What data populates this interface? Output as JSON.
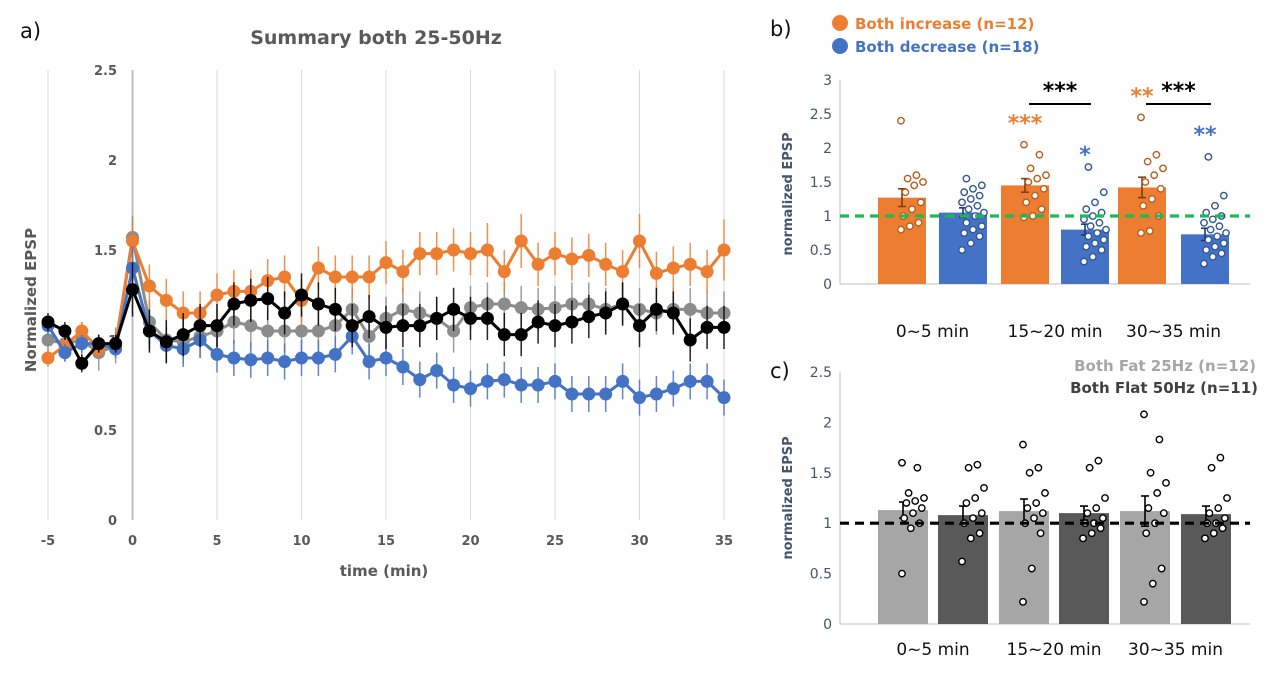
{
  "panel_labels": {
    "a": "a)",
    "b": "b)",
    "c": "c)"
  },
  "colors": {
    "orange": "#ed7d31",
    "blue": "#4472c4",
    "gray": "#8c8c8c",
    "black": "#000000",
    "light_bar": "#a6a6a6",
    "dark_bar": "#595959",
    "green_ref": "#1db954"
  },
  "chart_data": [
    {
      "type": "line",
      "title": "Summary both 25-50Hz",
      "xlabel": "time (min)",
      "ylabel": "Normalized EPSP",
      "xlim": [
        -5,
        35
      ],
      "ylim": [
        0,
        2.5
      ],
      "x_ticks": [
        "-5",
        "0",
        "5",
        "10",
        "15",
        "20",
        "25",
        "30",
        "35"
      ],
      "y_ticks": [
        "0",
        "0.5",
        "1",
        "1.5",
        "2",
        "2.5"
      ],
      "grid": true,
      "x": [
        -5,
        -4,
        -3,
        -2,
        -1,
        0,
        1,
        2,
        3,
        4,
        5,
        6,
        7,
        8,
        9,
        10,
        11,
        12,
        13,
        14,
        15,
        16,
        17,
        18,
        19,
        20,
        21,
        22,
        23,
        24,
        25,
        26,
        27,
        28,
        29,
        30,
        31,
        32,
        33,
        34,
        35
      ],
      "series": [
        {
          "color": "#8c8c8c",
          "values": [
            1.0,
            0.98,
            1.0,
            0.93,
            0.97,
            1.57,
            1.1,
            1.0,
            0.99,
            1.02,
            1.05,
            1.1,
            1.08,
            1.05,
            1.05,
            1.05,
            1.05,
            1.08,
            1.17,
            1.02,
            1.12,
            1.17,
            1.15,
            1.12,
            1.05,
            1.18,
            1.2,
            1.2,
            1.18,
            1.17,
            1.18,
            1.2,
            1.2,
            1.17,
            1.2,
            1.17,
            1.15,
            1.17,
            1.17,
            1.15,
            1.15
          ],
          "errors": [
            0.1,
            0.1,
            0.1,
            0.1,
            0.1,
            0.12,
            0.12,
            0.12,
            0.12,
            0.12,
            0.12,
            0.12,
            0.12,
            0.12,
            0.12,
            0.12,
            0.12,
            0.12,
            0.12,
            0.12,
            0.12,
            0.12,
            0.12,
            0.12,
            0.12,
            0.12,
            0.12,
            0.12,
            0.12,
            0.12,
            0.12,
            0.12,
            0.12,
            0.12,
            0.12,
            0.12,
            0.12,
            0.12,
            0.12,
            0.12,
            0.12
          ]
        },
        {
          "color": "#ed7d31",
          "values": [
            0.9,
            0.97,
            1.05,
            0.95,
            0.98,
            1.55,
            1.3,
            1.22,
            1.15,
            1.15,
            1.25,
            1.27,
            1.27,
            1.33,
            1.35,
            1.22,
            1.4,
            1.35,
            1.35,
            1.35,
            1.43,
            1.38,
            1.48,
            1.48,
            1.5,
            1.48,
            1.5,
            1.38,
            1.55,
            1.42,
            1.48,
            1.45,
            1.47,
            1.42,
            1.38,
            1.55,
            1.37,
            1.4,
            1.42,
            1.38,
            1.5
          ],
          "errors": [
            0.05,
            0.05,
            0.05,
            0.05,
            0.05,
            0.12,
            0.12,
            0.12,
            0.12,
            0.12,
            0.12,
            0.12,
            0.12,
            0.12,
            0.12,
            0.12,
            0.12,
            0.12,
            0.12,
            0.12,
            0.12,
            0.12,
            0.12,
            0.12,
            0.12,
            0.12,
            0.15,
            0.12,
            0.15,
            0.12,
            0.12,
            0.12,
            0.12,
            0.12,
            0.12,
            0.15,
            0.12,
            0.12,
            0.12,
            0.12,
            0.17
          ]
        },
        {
          "color": "#4472c4",
          "values": [
            1.08,
            0.93,
            0.98,
            0.98,
            0.95,
            1.4,
            1.05,
            0.97,
            0.95,
            1.0,
            0.92,
            0.9,
            0.89,
            0.9,
            0.88,
            0.9,
            0.9,
            0.92,
            1.02,
            0.88,
            0.9,
            0.85,
            0.78,
            0.83,
            0.75,
            0.73,
            0.77,
            0.78,
            0.75,
            0.75,
            0.77,
            0.7,
            0.7,
            0.7,
            0.77,
            0.68,
            0.7,
            0.73,
            0.77,
            0.77,
            0.68
          ],
          "errors": [
            0.05,
            0.05,
            0.05,
            0.05,
            0.05,
            0.12,
            0.1,
            0.1,
            0.1,
            0.1,
            0.1,
            0.1,
            0.1,
            0.1,
            0.1,
            0.1,
            0.1,
            0.1,
            0.1,
            0.1,
            0.1,
            0.1,
            0.1,
            0.1,
            0.1,
            0.1,
            0.1,
            0.1,
            0.1,
            0.1,
            0.1,
            0.1,
            0.1,
            0.1,
            0.1,
            0.1,
            0.1,
            0.1,
            0.1,
            0.1,
            0.1
          ]
        },
        {
          "color": "#000000",
          "values": [
            1.1,
            1.05,
            0.87,
            0.98,
            0.98,
            1.28,
            1.05,
            0.99,
            1.03,
            1.08,
            1.08,
            1.2,
            1.22,
            1.23,
            1.15,
            1.25,
            1.2,
            1.17,
            1.08,
            1.13,
            1.07,
            1.08,
            1.08,
            1.12,
            1.17,
            1.12,
            1.12,
            1.03,
            1.03,
            1.1,
            1.08,
            1.1,
            1.13,
            1.15,
            1.2,
            1.08,
            1.17,
            1.15,
            1.0,
            1.07,
            1.07
          ],
          "errors": [
            0.05,
            0.05,
            0.05,
            0.05,
            0.05,
            0.15,
            0.12,
            0.12,
            0.12,
            0.12,
            0.12,
            0.12,
            0.12,
            0.12,
            0.12,
            0.12,
            0.12,
            0.12,
            0.12,
            0.12,
            0.12,
            0.12,
            0.12,
            0.12,
            0.12,
            0.12,
            0.12,
            0.12,
            0.12,
            0.12,
            0.12,
            0.12,
            0.12,
            0.12,
            0.12,
            0.12,
            0.12,
            0.12,
            0.12,
            0.12,
            0.12
          ]
        }
      ]
    },
    {
      "type": "bar",
      "title": "",
      "xlabel": "",
      "ylabel": "normalized EPSP",
      "ylim": [
        0,
        3
      ],
      "y_ticks": [
        "0",
        "0.5",
        "1",
        "1.5",
        "2",
        "2.5",
        "3"
      ],
      "categories": [
        "0~5 min",
        "15~20 min",
        "30~35 min"
      ],
      "reference_line": 1.0,
      "legend": [
        {
          "label": "Both increase (n=12)",
          "color": "#ed7d31"
        },
        {
          "label": "Both decrease (n=18)",
          "color": "#4472c4"
        }
      ],
      "series": [
        {
          "name": "Both increase (n=12)",
          "color": "#ed7d31",
          "values": [
            1.27,
            1.45,
            1.42
          ],
          "errors": [
            0.13,
            0.1,
            0.15
          ],
          "significance": [
            "",
            "***",
            "**"
          ],
          "points": [
            [
              0.8,
              0.85,
              0.9,
              1.0,
              1.1,
              1.2,
              1.35,
              1.45,
              1.5,
              1.55,
              1.6,
              2.4
            ],
            [
              0.98,
              1.0,
              1.1,
              1.2,
              1.3,
              1.4,
              1.5,
              1.55,
              1.6,
              1.7,
              1.9,
              2.05
            ],
            [
              0.75,
              0.78,
              1.0,
              1.15,
              1.25,
              1.4,
              1.5,
              1.6,
              1.7,
              1.8,
              1.9,
              2.45
            ]
          ]
        },
        {
          "name": "Both decrease (n=18)",
          "color": "#4472c4",
          "values": [
            1.05,
            0.8,
            0.73
          ],
          "errors": [
            0.07,
            0.08,
            0.09
          ],
          "significance": [
            "",
            "*",
            "**"
          ],
          "points": [
            [
              0.5,
              0.6,
              0.7,
              0.75,
              0.8,
              0.85,
              0.9,
              1.0,
              1.05,
              1.1,
              1.15,
              1.2,
              1.25,
              1.3,
              1.35,
              1.4,
              1.45,
              1.55
            ],
            [
              0.33,
              0.4,
              0.5,
              0.55,
              0.6,
              0.65,
              0.7,
              0.75,
              0.8,
              0.85,
              0.9,
              0.95,
              1.0,
              1.05,
              1.1,
              1.2,
              1.35,
              1.72
            ],
            [
              0.3,
              0.4,
              0.45,
              0.5,
              0.55,
              0.6,
              0.65,
              0.7,
              0.75,
              0.8,
              0.85,
              0.9,
              0.95,
              1.0,
              1.05,
              1.15,
              1.3,
              1.87
            ]
          ]
        }
      ],
      "comparisons": [
        {
          "category": "15~20 min",
          "label": "***"
        },
        {
          "category": "30~35 min",
          "label": "***"
        }
      ]
    },
    {
      "type": "bar",
      "title": "",
      "xlabel": "",
      "ylabel": "normalized EPSP",
      "ylim": [
        0,
        2.5
      ],
      "y_ticks": [
        "0",
        "0.5",
        "1",
        "1.5",
        "2",
        "2.5"
      ],
      "categories": [
        "0~5 min",
        "15~20 min",
        "30~35 min"
      ],
      "reference_line": 1.0,
      "legend": [
        {
          "label": "Both Fat 25Hz (n=12)",
          "color": "#a6a6a6"
        },
        {
          "label": "Both Flat 50Hz (n=11)",
          "color": "#404040"
        }
      ],
      "series": [
        {
          "name": "Both Fat 25Hz (n=12)",
          "color": "#a6a6a6",
          "values": [
            1.13,
            1.12,
            1.12
          ],
          "errors": [
            0.08,
            0.12,
            0.15
          ],
          "points": [
            [
              0.5,
              0.95,
              1.0,
              1.05,
              1.1,
              1.15,
              1.2,
              1.22,
              1.25,
              1.3,
              1.55,
              1.6
            ],
            [
              0.22,
              0.55,
              0.9,
              1.0,
              1.05,
              1.1,
              1.15,
              1.2,
              1.3,
              1.5,
              1.55,
              1.78
            ],
            [
              0.22,
              0.4,
              0.55,
              0.9,
              1.0,
              1.1,
              1.15,
              1.3,
              1.4,
              1.5,
              1.83,
              2.08
            ]
          ]
        },
        {
          "name": "Both Flat 50Hz (n=11)",
          "color": "#595959",
          "values": [
            1.08,
            1.1,
            1.09
          ],
          "errors": [
            0.09,
            0.07,
            0.08
          ],
          "points": [
            [
              0.62,
              0.85,
              0.9,
              1.0,
              1.05,
              1.1,
              1.2,
              1.25,
              1.35,
              1.55,
              1.58
            ],
            [
              0.85,
              0.9,
              0.95,
              1.0,
              1.0,
              1.05,
              1.1,
              1.15,
              1.25,
              1.55,
              1.62
            ],
            [
              0.85,
              0.9,
              0.95,
              1.0,
              1.0,
              1.05,
              1.1,
              1.15,
              1.25,
              1.55,
              1.65
            ]
          ]
        }
      ]
    }
  ]
}
